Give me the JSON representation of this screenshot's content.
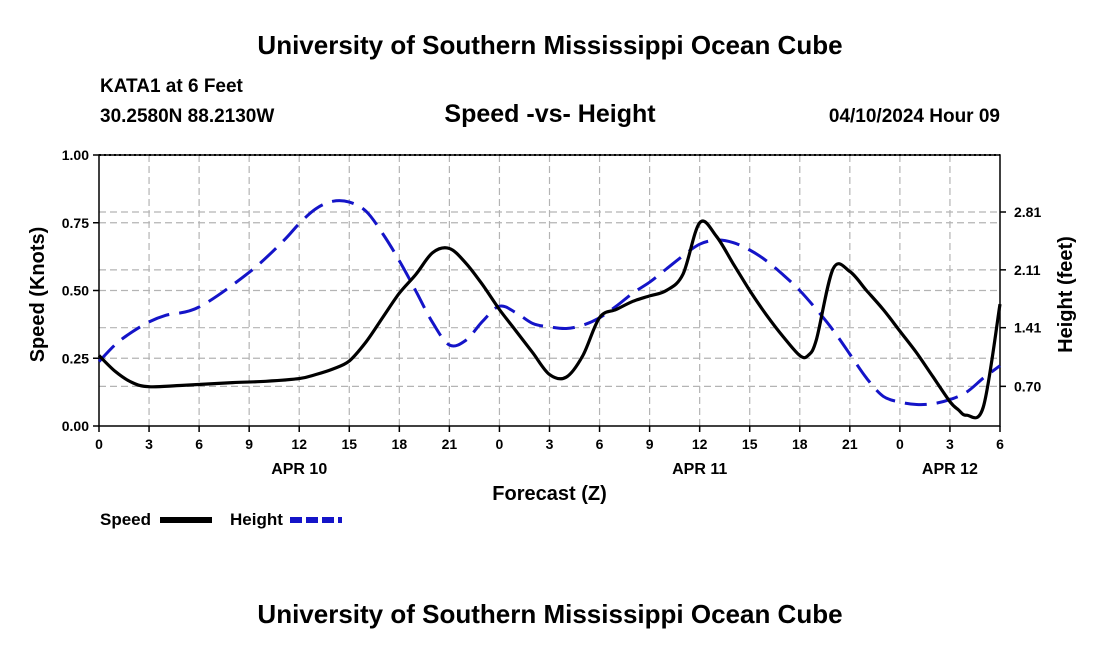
{
  "header": {
    "title": "University of Southern Mississippi Ocean Cube",
    "station": "KATA1 at 6 Feet",
    "coords": "30.2580N  88.2130W",
    "subtitle": "Speed -vs- Height",
    "datetime": "04/10/2024 Hour 09"
  },
  "footer": {
    "title": "University of Southern Mississippi Ocean Cube"
  },
  "chart_data": {
    "type": "line",
    "title": "Speed -vs- Height",
    "xlabel": "Forecast (Z)",
    "ylabel": "Speed (Knots)",
    "y2label": "Height (feet)",
    "x_range": [
      0,
      54
    ],
    "xticks": [
      0,
      3,
      6,
      9,
      12,
      15,
      18,
      21,
      24,
      27,
      30,
      33,
      36,
      39,
      42,
      45,
      48,
      51,
      54
    ],
    "xtick_labels": [
      "0",
      "3",
      "6",
      "9",
      "12",
      "15",
      "18",
      "21",
      "0",
      "3",
      "6",
      "9",
      "12",
      "15",
      "18",
      "21",
      "0",
      "3",
      "6"
    ],
    "date_labels": [
      {
        "x": 12,
        "label": "APR 10"
      },
      {
        "x": 36,
        "label": "APR 11"
      },
      {
        "x": 51,
        "label": "APR 12"
      }
    ],
    "ylim": [
      0,
      1
    ],
    "yticks": [
      0,
      0.25,
      0.5,
      0.75,
      1.0
    ],
    "ytick_labels": [
      "0.00",
      "0.25",
      "0.50",
      "0.75",
      "1.00"
    ],
    "y2lim": [
      0.22,
      3.5
    ],
    "y2ticks": [
      0.7,
      1.41,
      2.11,
      2.81
    ],
    "y2tick_labels": [
      "0.70",
      "1.41",
      "2.11",
      "2.81"
    ],
    "grid": true,
    "colors": {
      "speed": "#000000",
      "height": "#1414c8",
      "grid": "#b4b4b4"
    },
    "legend": [
      {
        "label": "Speed",
        "color": "#000000",
        "style": "solid"
      },
      {
        "label": "Height",
        "color": "#1414c8",
        "style": "dashed"
      }
    ],
    "series": [
      {
        "name": "Speed",
        "axis": "left",
        "x": [
          0,
          1,
          2,
          3,
          5,
          8,
          10,
          12,
          13,
          14,
          15,
          16,
          17,
          18,
          19,
          20,
          21,
          22,
          23,
          24,
          25,
          26,
          27,
          28,
          29,
          30,
          31,
          32,
          33,
          34,
          35,
          36,
          37,
          38,
          39,
          40,
          41,
          42,
          42.5,
          43,
          44,
          45,
          46,
          47,
          48,
          49,
          50,
          51,
          51.5,
          52,
          53,
          54
        ],
        "y": [
          0.26,
          0.2,
          0.16,
          0.145,
          0.15,
          0.16,
          0.165,
          0.175,
          0.19,
          0.21,
          0.24,
          0.31,
          0.4,
          0.49,
          0.56,
          0.64,
          0.655,
          0.6,
          0.52,
          0.43,
          0.35,
          0.27,
          0.19,
          0.18,
          0.26,
          0.4,
          0.43,
          0.46,
          0.48,
          0.5,
          0.56,
          0.75,
          0.7,
          0.6,
          0.5,
          0.41,
          0.33,
          0.26,
          0.26,
          0.32,
          0.58,
          0.57,
          0.5,
          0.43,
          0.35,
          0.27,
          0.18,
          0.09,
          0.06,
          0.04,
          0.07,
          0.45
        ]
      },
      {
        "name": "Height",
        "axis": "right",
        "x": [
          0,
          1,
          2,
          3,
          4,
          6,
          9,
          11,
          12,
          13,
          14,
          15,
          16,
          17,
          18,
          19,
          20,
          21,
          22,
          23,
          24,
          25,
          26,
          27,
          28,
          29,
          30,
          31,
          32,
          33,
          34,
          35,
          36,
          37,
          38,
          39,
          40,
          41,
          42,
          43,
          44,
          45,
          46,
          47,
          48,
          49,
          50,
          51,
          52,
          53,
          54
        ],
        "y": [
          1.0,
          1.21,
          1.36,
          1.48,
          1.56,
          1.66,
          2.08,
          2.45,
          2.67,
          2.85,
          2.94,
          2.93,
          2.82,
          2.55,
          2.22,
          1.85,
          1.47,
          1.2,
          1.26,
          1.49,
          1.67,
          1.59,
          1.46,
          1.42,
          1.4,
          1.44,
          1.53,
          1.67,
          1.83,
          1.96,
          2.12,
          2.28,
          2.42,
          2.47,
          2.44,
          2.35,
          2.22,
          2.05,
          1.86,
          1.63,
          1.38,
          1.09,
          0.8,
          0.58,
          0.51,
          0.48,
          0.49,
          0.54,
          0.63,
          0.8,
          0.95
        ]
      }
    ]
  }
}
